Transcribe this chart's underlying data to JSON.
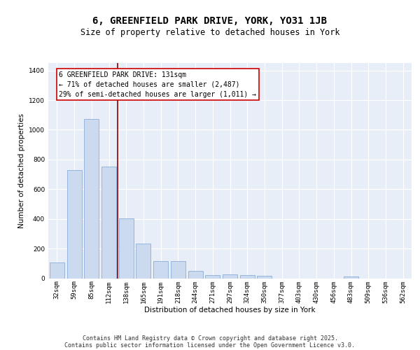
{
  "title": "6, GREENFIELD PARK DRIVE, YORK, YO31 1JB",
  "subtitle": "Size of property relative to detached houses in York",
  "xlabel": "Distribution of detached houses by size in York",
  "ylabel": "Number of detached properties",
  "categories": [
    "32sqm",
    "59sqm",
    "85sqm",
    "112sqm",
    "138sqm",
    "165sqm",
    "191sqm",
    "218sqm",
    "244sqm",
    "271sqm",
    "297sqm",
    "324sqm",
    "350sqm",
    "377sqm",
    "403sqm",
    "430sqm",
    "456sqm",
    "483sqm",
    "509sqm",
    "536sqm",
    "562sqm"
  ],
  "values": [
    107,
    730,
    1075,
    750,
    405,
    235,
    115,
    115,
    48,
    22,
    27,
    22,
    18,
    0,
    0,
    0,
    0,
    10,
    0,
    0,
    0
  ],
  "bar_color": "#ccdaf0",
  "bar_edge_color": "#7ba3d4",
  "vline_x_index": 3.5,
  "vline_color": "#8b0000",
  "annotation_text": "6 GREENFIELD PARK DRIVE: 131sqm\n← 71% of detached houses are smaller (2,487)\n29% of semi-detached houses are larger (1,011) →",
  "annotation_box_color": "#ffffff",
  "annotation_box_edge": "#cc0000",
  "ylim": [
    0,
    1450
  ],
  "background_color": "#e8eef7",
  "footer_line1": "Contains HM Land Registry data © Crown copyright and database right 2025.",
  "footer_line2": "Contains public sector information licensed under the Open Government Licence v3.0.",
  "title_fontsize": 10,
  "subtitle_fontsize": 8.5,
  "axis_label_fontsize": 7.5,
  "tick_fontsize": 6.5,
  "annotation_fontsize": 7,
  "footer_fontsize": 6
}
